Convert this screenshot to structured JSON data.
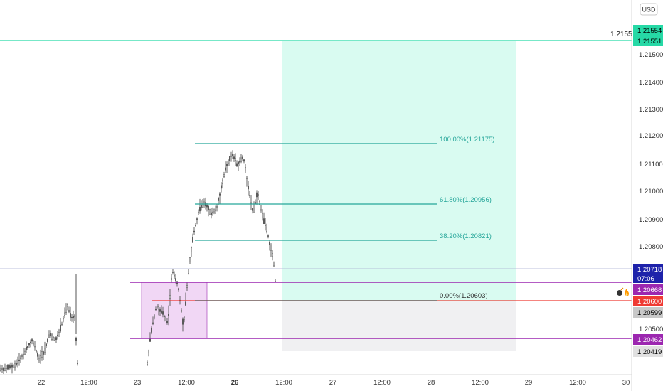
{
  "currency_label": "USD",
  "top_line_label": "1.2155",
  "countdown": "07:06",
  "chart_data": {
    "type": "candlestick",
    "y_axis_ticks": [
      "1.21500",
      "1.21400",
      "1.21300",
      "1.21200",
      "1.21100",
      "1.21000",
      "1.20900",
      "1.20800",
      "1.20500"
    ],
    "x_axis_ticks": [
      {
        "label": "22",
        "bold": false
      },
      {
        "label": "12:00",
        "bold": false
      },
      {
        "label": "23",
        "bold": false
      },
      {
        "label": "12:00",
        "bold": false
      },
      {
        "label": "26",
        "bold": true
      },
      {
        "label": "12:00",
        "bold": false
      },
      {
        "label": "27",
        "bold": false
      },
      {
        "label": "12:00",
        "bold": false
      },
      {
        "label": "28",
        "bold": false
      },
      {
        "label": "12:00",
        "bold": false
      },
      {
        "label": "29",
        "bold": false
      },
      {
        "label": "12:00",
        "bold": false
      },
      {
        "label": "30",
        "bold": false
      }
    ],
    "price_tags": [
      {
        "value": "1.21554",
        "bg": "#26d9a6",
        "fg": "#000000"
      },
      {
        "value": "1.21551",
        "bg": "#26d9a6",
        "fg": "#000000"
      },
      {
        "value": "1.20718",
        "bg": "#1e22aa",
        "fg": "#ffffff"
      },
      {
        "value": "1.20668",
        "bg": "#9c27b0",
        "fg": "#ffffff"
      },
      {
        "value": "1.20600",
        "bg": "#ef3a33",
        "fg": "#ffffff"
      },
      {
        "value": "1.20599",
        "bg": "#c8c8c8",
        "fg": "#000000"
      },
      {
        "value": "1.20462",
        "bg": "#9c27b0",
        "fg": "#ffffff"
      },
      {
        "value": "1.20419",
        "bg": "#e0e0e0",
        "fg": "#000000"
      }
    ],
    "fib_levels": [
      {
        "label": "100.00%(1.21175)",
        "price": 1.21175
      },
      {
        "label": "61.80%(1.20956)",
        "price": 1.20956
      },
      {
        "label": "38.20%(1.20821)",
        "price": 1.20821
      },
      {
        "label": "0.00%(1.20603)",
        "price": 1.20603
      }
    ],
    "horizontal_lines": [
      {
        "name": "target",
        "price": 1.21555,
        "color": "#26d9a6"
      },
      {
        "name": "last-price",
        "price": 1.20718,
        "color": "#9aa0c8"
      },
      {
        "name": "zone-top",
        "price": 1.20668,
        "color": "#9c27b0"
      },
      {
        "name": "entry",
        "price": 1.206,
        "color": "#ef3a33"
      },
      {
        "name": "zone-bottom",
        "price": 1.20462,
        "color": "#9c27b0"
      }
    ],
    "profit_zone": {
      "top": 1.21555,
      "bottom": 1.20603,
      "color": "#d9fbf1"
    },
    "loss_zone": {
      "top": 1.20603,
      "bottom": 1.20419,
      "color": "#f0f0f2"
    },
    "demand_zone": {
      "top": 1.20668,
      "bottom": 1.20462,
      "color": "#f1d7f5"
    },
    "icons": [
      "bomb-icon",
      "fire-icon"
    ]
  }
}
